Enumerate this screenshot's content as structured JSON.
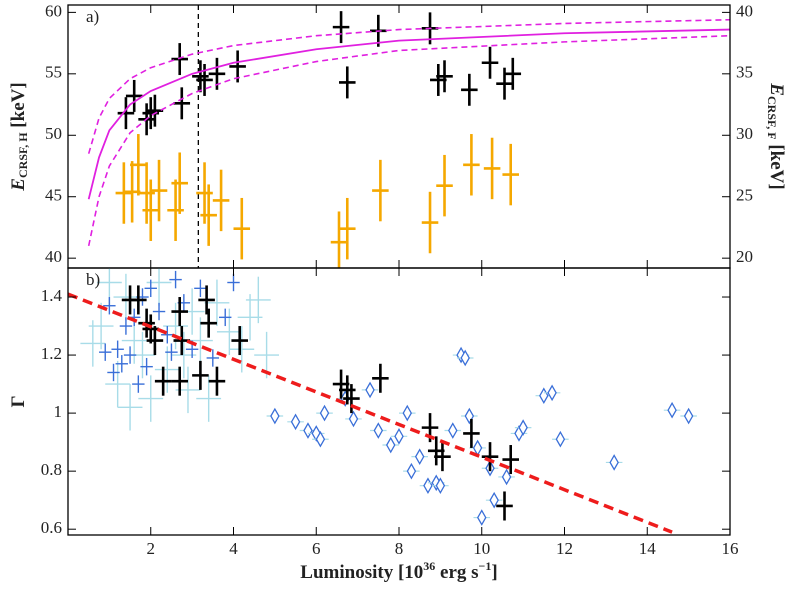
{
  "chart_data": [
    {
      "type": "errorbar",
      "label": "a)",
      "ylabel": {
        "main": "E",
        "sub": "CRSF, H",
        "unit": " [keV]"
      },
      "y2label": {
        "main": "E",
        "sub": "CRSF, F",
        "unit": " [keV]"
      },
      "xlim": [
        0,
        16
      ],
      "ylim": [
        39.2,
        60.6
      ],
      "yticks": [
        40,
        45,
        50,
        55,
        60
      ],
      "y2lim": [
        19.2,
        40.6
      ],
      "y2ticks": [
        20,
        25,
        30,
        35,
        40
      ],
      "vline": 3.15,
      "series": [
        {
          "color": "#000000",
          "marker": "cross",
          "linewidth": 2.6,
          "x": [
            1.4,
            1.6,
            1.9,
            2.0,
            2.1,
            2.7,
            2.75,
            3.2,
            3.3,
            3.6,
            4.1,
            6.6,
            6.75,
            7.5,
            8.75,
            8.95,
            9.1,
            9.7,
            10.2,
            10.55,
            10.75
          ],
          "values": [
            51.8,
            53.2,
            51.3,
            51.8,
            52.0,
            56.2,
            52.6,
            54.8,
            54.5,
            55.0,
            55.6,
            58.8,
            54.3,
            58.5,
            58.7,
            54.5,
            54.8,
            53.7,
            55.9,
            54.2,
            55.0
          ],
          "xerr": 0.2,
          "yerr": 1.3
        },
        {
          "color": "#f5a800",
          "marker": "cross",
          "linewidth": 2.6,
          "axis": "y2",
          "x": [
            1.35,
            1.55,
            1.7,
            1.9,
            2.0,
            2.2,
            2.6,
            2.7,
            3.3,
            3.4,
            3.7,
            4.2,
            6.55,
            6.75,
            7.55,
            8.75,
            9.1,
            9.75,
            10.25,
            10.7
          ],
          "values": [
            25.3,
            25.4,
            27.6,
            25.3,
            23.9,
            25.5,
            23.9,
            26.1,
            25.3,
            23.5,
            24.7,
            22.4,
            21.3,
            22.4,
            25.5,
            22.9,
            25.9,
            27.6,
            27.3,
            26.8
          ],
          "xerr": 0.2,
          "yerr": 2.5
        }
      ],
      "lines": [
        {
          "color": "#e020e0",
          "dash": false,
          "x": [
            0.5,
            0.75,
            1,
            1.5,
            2,
            3,
            4,
            6,
            8,
            12,
            16
          ],
          "values": [
            44.8,
            48.2,
            50.4,
            52.5,
            53.6,
            55.0,
            55.9,
            57.0,
            57.7,
            58.3,
            58.6
          ]
        },
        {
          "color": "#e020e0",
          "dash": true,
          "x": [
            0.5,
            0.75,
            1,
            1.5,
            2,
            3,
            4,
            6,
            8,
            12,
            16
          ],
          "values": [
            48.5,
            51.4,
            53.0,
            54.6,
            55.5,
            56.6,
            57.3,
            58.1,
            58.6,
            59.1,
            59.4
          ]
        },
        {
          "color": "#e020e0",
          "dash": true,
          "x": [
            0.5,
            0.75,
            1,
            1.5,
            2,
            3,
            4,
            6,
            8,
            12,
            16
          ],
          "values": [
            41.0,
            45.0,
            47.5,
            50.2,
            51.6,
            53.4,
            54.6,
            56.0,
            56.9,
            57.6,
            58.1
          ]
        }
      ]
    },
    {
      "type": "errorbar",
      "label": "b)",
      "ylabel": {
        "main": "Γ"
      },
      "xlabel": [
        "Luminosity [10",
        "36",
        " erg s",
        "−1",
        "]"
      ],
      "xlim": [
        0,
        16
      ],
      "xticks": [
        2,
        4,
        6,
        8,
        10,
        12,
        14,
        16
      ],
      "ylim": [
        0.58,
        1.5
      ],
      "yticks": [
        0.6,
        0.8,
        1,
        1.2,
        1.4
      ],
      "series": [
        {
          "color": "#a8dce8",
          "marker": "cross",
          "linewidth": 1.4,
          "x": [
            0.8,
            1.0,
            1.2,
            1.4,
            1.6,
            1.8,
            2.0,
            2.2,
            2.4,
            2.6,
            2.8,
            3.0,
            3.2,
            3.4,
            3.6,
            3.9,
            4.2,
            4.4,
            4.8,
            4.6,
            2.9,
            1.5,
            0.6
          ],
          "values": [
            1.3,
            1.45,
            1.1,
            1.4,
            1.25,
            1.2,
            1.05,
            1.45,
            1.15,
            1.3,
            1.2,
            1.35,
            1.25,
            1.05,
            1.38,
            1.28,
            1.22,
            1.33,
            1.2,
            1.39,
            1.08,
            1.02,
            1.24
          ],
          "xerr": 0.3,
          "yerr": 0.08
        },
        {
          "color": "#3a6fd8",
          "marker": "cross",
          "linewidth": 1.4,
          "x": [
            1.0,
            1.2,
            1.3,
            1.4,
            1.5,
            1.6,
            1.8,
            1.9,
            2.0,
            2.2,
            2.4,
            2.6,
            2.8,
            3.0,
            3.2,
            3.5,
            3.8,
            4.0,
            1.1,
            2.5,
            0.9,
            1.7
          ],
          "values": [
            1.37,
            1.22,
            1.17,
            1.3,
            1.2,
            1.33,
            1.4,
            1.16,
            1.43,
            1.35,
            1.27,
            1.46,
            1.38,
            1.22,
            1.43,
            1.19,
            1.33,
            1.45,
            1.14,
            1.21,
            1.21,
            1.1
          ],
          "xerr": 0.15,
          "yerr": 0.03
        },
        {
          "color": "#3a6fd8",
          "marker": "diamond",
          "linewidth": 1.2,
          "errcolor": "#a8dce8",
          "x": [
            5.0,
            5.5,
            5.8,
            6.0,
            6.1,
            6.7,
            6.9,
            7.3,
            7.5,
            7.8,
            8.0,
            8.2,
            8.3,
            8.7,
            8.9,
            9.0,
            9.3,
            9.5,
            9.6,
            9.9,
            10.0,
            10.3,
            10.6,
            10.9,
            11.0,
            11.5,
            11.7,
            11.9,
            13.2,
            14.6,
            15.0,
            6.2,
            8.5,
            9.7,
            10.2
          ],
          "values": [
            0.99,
            0.97,
            0.94,
            0.93,
            0.91,
            1.05,
            0.98,
            1.08,
            0.94,
            0.89,
            0.92,
            1.0,
            0.8,
            0.75,
            0.76,
            0.75,
            0.94,
            1.2,
            1.19,
            0.88,
            0.64,
            0.7,
            0.78,
            0.93,
            0.95,
            1.06,
            1.07,
            0.91,
            0.83,
            1.01,
            0.99,
            1.0,
            0.85,
            0.99,
            0.81
          ],
          "xerr": 0.2,
          "yerr": 0.015
        },
        {
          "color": "#000000",
          "marker": "cross",
          "linewidth": 2.6,
          "x": [
            1.5,
            1.7,
            1.9,
            2.0,
            2.1,
            2.3,
            2.7,
            2.75,
            2.7,
            3.2,
            3.35,
            3.4,
            3.6,
            4.15,
            6.6,
            6.75,
            6.85,
            7.55,
            8.75,
            8.9,
            9.05,
            9.75,
            10.2,
            10.55,
            10.7
          ],
          "values": [
            1.39,
            1.39,
            1.31,
            1.29,
            1.25,
            1.11,
            1.35,
            1.25,
            1.11,
            1.13,
            1.39,
            1.31,
            1.11,
            1.25,
            1.1,
            1.08,
            1.05,
            1.12,
            0.95,
            0.87,
            0.85,
            0.93,
            0.85,
            0.68,
            0.84
          ],
          "xerr": 0.2,
          "yerr": 0.05
        }
      ],
      "lines": [
        {
          "color": "#ee1c1c",
          "dash": true,
          "x": [
            0,
            14.6
          ],
          "values": [
            1.41,
            0.59
          ]
        }
      ]
    }
  ]
}
